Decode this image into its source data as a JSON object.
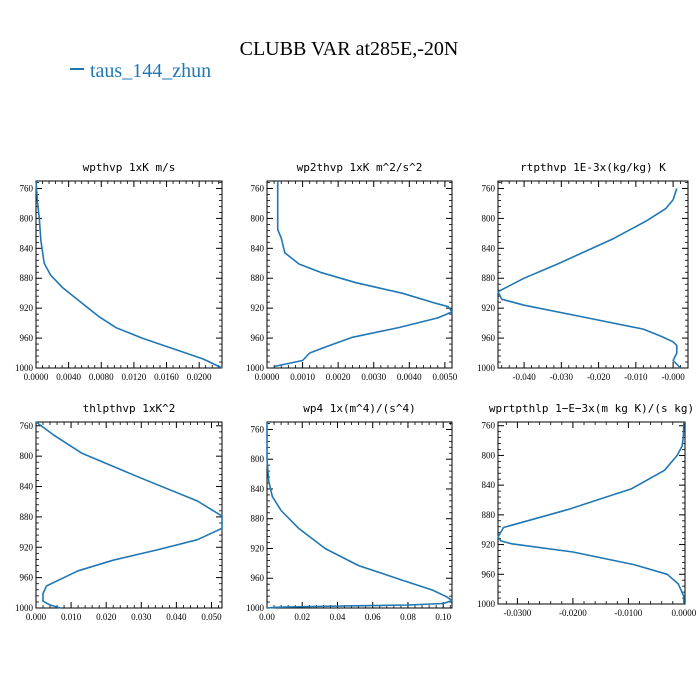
{
  "figure": {
    "title": "CLUBB VAR at285E,-20N",
    "legend_label": "taus_144_zhun",
    "line_color": "#1f77b4"
  },
  "chart_data": [
    {
      "type": "line",
      "title": "wpthvp  1xK m/s",
      "xlim": [
        0,
        0.0228
      ],
      "ylim": [
        1000,
        750
      ],
      "x_ticks": [
        0.0,
        0.004,
        0.008,
        0.012,
        0.016,
        0.02
      ],
      "x_tick_labels": [
        "0.0000",
        "0.0040",
        "0.0080",
        "0.0120",
        "0.0160",
        "0.0200"
      ],
      "y_ticks": [
        760,
        800,
        840,
        880,
        920,
        960,
        1000
      ],
      "series": [
        {
          "x": [
            0.0,
            0.0002,
            0.0004,
            0.0006,
            0.001,
            0.0018,
            0.0032,
            0.0055,
            0.0078,
            0.0098,
            0.013,
            0.017,
            0.0205,
            0.0228
          ],
          "y": [
            750,
            780,
            800,
            830,
            860,
            876,
            892,
            912,
            932,
            946,
            960,
            975,
            988,
            1000
          ]
        }
      ]
    },
    {
      "type": "line",
      "title": "wp2thvp  1xK m^2/s^2",
      "xlim": [
        0,
        0.0052
      ],
      "ylim": [
        1000,
        750
      ],
      "x_ticks": [
        0.0,
        0.001,
        0.002,
        0.003,
        0.004,
        0.005
      ],
      "x_tick_labels": [
        "0.0000",
        "0.0010",
        "0.0020",
        "0.0030",
        "0.0040",
        "0.0050"
      ],
      "y_ticks": [
        760,
        800,
        840,
        880,
        920,
        960,
        1000
      ],
      "series": [
        {
          "x": [
            0.0003,
            0.0003,
            0.0003,
            0.0004,
            0.0005,
            0.0009,
            0.0015,
            0.0025,
            0.0038,
            0.0047,
            0.0051,
            0.0052,
            0.0048,
            0.0037,
            0.0024,
            0.0017,
            0.0012,
            0.001,
            0.0002
          ],
          "y": [
            750,
            790,
            815,
            826,
            846,
            861,
            872,
            886,
            900,
            913,
            918,
            925,
            933,
            946,
            959,
            971,
            980,
            990,
            998
          ]
        }
      ]
    },
    {
      "type": "line",
      "title": "rtpthvp  1E-3x(kg/kg) K",
      "xlim": [
        -0.047,
        0.004
      ],
      "ylim": [
        1000,
        750
      ],
      "x_ticks": [
        -0.04,
        -0.03,
        -0.02,
        -0.01,
        0.0
      ],
      "x_tick_labels": [
        "-0.040",
        "-0.030",
        "-0.020",
        "-0.010",
        "-0.000"
      ],
      "y_ticks": [
        760,
        800,
        840,
        880,
        920,
        960,
        1000
      ],
      "series": [
        {
          "x": [
            0.001,
            0.0,
            -0.002,
            -0.007,
            -0.016,
            -0.031,
            -0.04,
            -0.047,
            -0.046,
            -0.04,
            -0.025,
            -0.008,
            -0.003,
            0.0,
            0.001,
            0.001,
            0.0,
            0.002
          ],
          "y": [
            760,
            775,
            787,
            803,
            827,
            861,
            880,
            898,
            908,
            916,
            931,
            948,
            958,
            965,
            970,
            980,
            990,
            1000
          ]
        }
      ]
    },
    {
      "type": "line",
      "title": "thlpthvp  1xK^2",
      "xlim": [
        0,
        0.053
      ],
      "ylim": [
        1000,
        755
      ],
      "x_ticks": [
        0.0,
        0.01,
        0.02,
        0.03,
        0.04,
        0.05
      ],
      "x_tick_labels": [
        "0.000",
        "0.010",
        "0.020",
        "0.030",
        "0.040",
        "0.050"
      ],
      "y_ticks": [
        760,
        800,
        840,
        880,
        920,
        960,
        1000
      ],
      "series": [
        {
          "x": [
            0.0,
            0.005,
            0.013,
            0.03,
            0.046,
            0.053,
            0.053,
            0.046,
            0.035,
            0.022,
            0.012,
            0.007,
            0.003,
            0.002,
            0.002,
            0.004,
            0.007
          ],
          "y": [
            755,
            772,
            796,
            829,
            859,
            879,
            895,
            910,
            923,
            937,
            951,
            962,
            971,
            981,
            991,
            996,
            1000
          ]
        }
      ]
    },
    {
      "type": "line",
      "title": "wp4  1x(m^4)/(s^4)",
      "xlim": [
        0,
        0.105
      ],
      "ylim": [
        1000,
        750
      ],
      "x_ticks": [
        0.0,
        0.02,
        0.04,
        0.06,
        0.08,
        0.1
      ],
      "x_tick_labels": [
        "0.00",
        "0.02",
        "0.04",
        "0.06",
        "0.08",
        "0.10"
      ],
      "y_ticks": [
        760,
        800,
        840,
        880,
        920,
        960,
        1000
      ],
      "series": [
        {
          "x": [
            0.0,
            0.0,
            0.001,
            0.003,
            0.008,
            0.018,
            0.033,
            0.052,
            0.076,
            0.094,
            0.102,
            0.105,
            0.1,
            0.08,
            0.05,
            0.025,
            0.005,
            0.0
          ],
          "y": [
            750,
            800,
            830,
            850,
            869,
            893,
            920,
            943,
            962,
            976,
            985,
            990,
            994,
            996,
            997,
            998,
            999,
            1000
          ]
        }
      ]
    },
    {
      "type": "line",
      "title": "wprtpthlp  1−E−3x(m kg K)/(s kg)",
      "xlim": [
        -0.0335,
        0.0002
      ],
      "ylim": [
        1000,
        755
      ],
      "x_ticks": [
        -0.03,
        -0.02,
        -0.01,
        0.0
      ],
      "x_tick_labels": [
        "-0.0300",
        "-0.0200",
        "-0.0100",
        "0.0000"
      ],
      "y_ticks": [
        760,
        800,
        840,
        880,
        920,
        960,
        1000
      ],
      "series": [
        {
          "x": [
            0.0,
            -0.0001,
            -0.0003,
            -0.0012,
            -0.0035,
            -0.0095,
            -0.021,
            -0.0325,
            -0.0335,
            -0.033,
            -0.031,
            -0.02,
            -0.009,
            -0.003,
            -0.001,
            0.0,
            0.0
          ],
          "y": [
            755,
            775,
            787,
            800,
            820,
            845,
            873,
            897,
            910,
            915,
            919,
            930,
            947,
            960,
            973,
            990,
            1000
          ]
        }
      ]
    }
  ]
}
